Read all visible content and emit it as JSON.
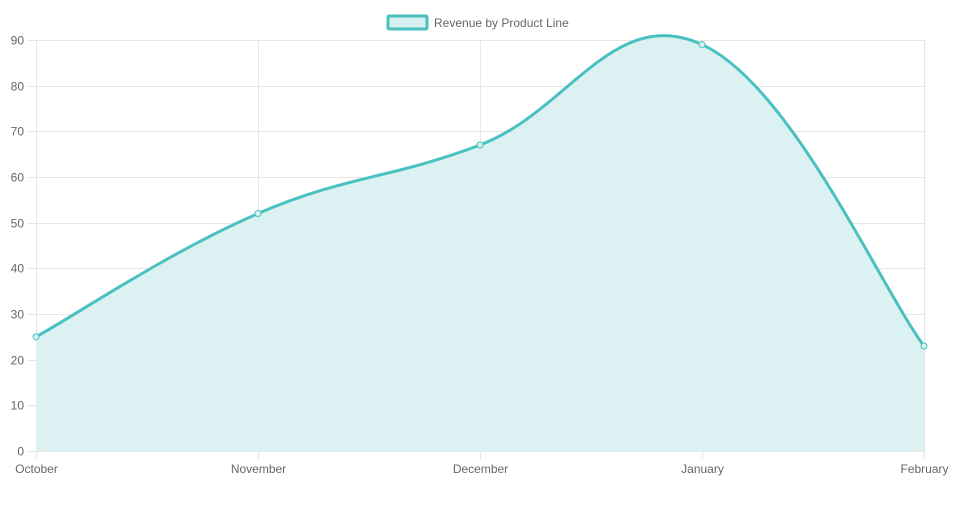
{
  "colors": {
    "line": "#4bc0c0",
    "fill": "#d7f0f1",
    "grid": "#e6e6e6",
    "tick_text": "#666666"
  },
  "chart_data": {
    "type": "area",
    "categories": [
      "October",
      "November",
      "December",
      "January",
      "February"
    ],
    "series": [
      {
        "name": "Revenue by Product Line",
        "values": [
          25,
          52,
          67,
          89,
          23
        ]
      }
    ],
    "ylim": [
      0,
      90
    ],
    "yticks": [
      0,
      10,
      20,
      30,
      40,
      50,
      60,
      70,
      80,
      90
    ],
    "ytick_labels": [
      "0",
      "10",
      "20",
      "30",
      "40",
      "50",
      "60",
      "70",
      "80",
      "90"
    ],
    "grid": true,
    "legend": "top-center",
    "smooth": true
  }
}
